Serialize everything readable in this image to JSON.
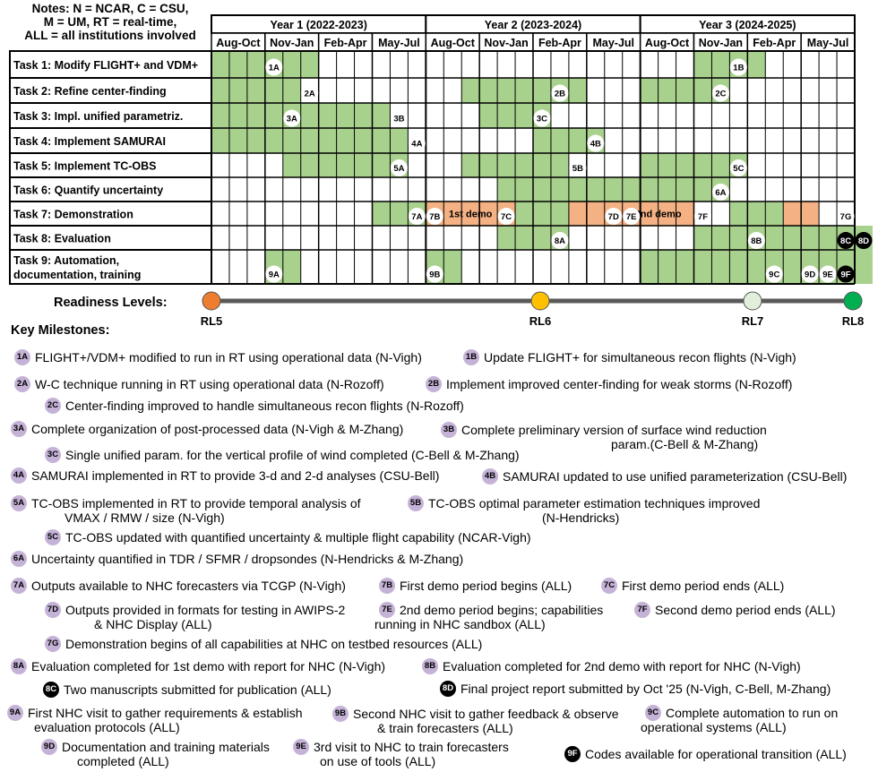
{
  "notes": {
    "line1": "Notes: N = NCAR, C = CSU,",
    "line2": "M = UM, RT = real-time,",
    "line3": "ALL = all institutions involved"
  },
  "years": [
    "Year 1 (2022-2023)",
    "Year 2 (2023-2024)",
    "Year 3 (2024-2025)"
  ],
  "quarters": [
    "Aug-Oct",
    "Nov-Jan",
    "Feb-Apr",
    "May-Jul",
    "Aug-Oct",
    "Nov-Jan",
    "Feb-Apr",
    "May-Jul",
    "Aug-Oct",
    "Nov-Jan",
    "Feb-Apr",
    "May-Jul"
  ],
  "colors": {
    "green": "#a9d18e",
    "orange": "#f4b183",
    "milestone_badge": "#c5b3d7",
    "rl5": "#ed7d31",
    "rl6": "#ffc000",
    "rl7": "#e2efda",
    "rl8": "#00b050"
  },
  "tasks": [
    {
      "label": "Task 1: Modify FLIGHT+ and VDM+",
      "spans": [
        [
          0,
          5,
          "green"
        ],
        [
          27,
          30,
          "green"
        ]
      ],
      "markers": [
        [
          3,
          "1A"
        ],
        [
          29,
          "1B"
        ]
      ]
    },
    {
      "label": "Task 2: Refine center-finding",
      "spans": [
        [
          0,
          4,
          "green"
        ],
        [
          14,
          20,
          "green"
        ],
        [
          24,
          28,
          "green"
        ]
      ],
      "markers": [
        [
          5,
          "2A"
        ],
        [
          19,
          "2B"
        ],
        [
          28,
          "2C"
        ]
      ]
    },
    {
      "label": "Task 3: Impl. unified parametriz.",
      "spans": [
        [
          0,
          9,
          "green"
        ],
        [
          15,
          18,
          "green"
        ]
      ],
      "markers": [
        [
          4,
          "3A"
        ],
        [
          10,
          "3B"
        ],
        [
          18,
          "3C"
        ]
      ]
    },
    {
      "label": "Task 4: Implement SAMURAI",
      "spans": [
        [
          0,
          10,
          "green"
        ],
        [
          18,
          21,
          "green"
        ]
      ],
      "markers": [
        [
          11,
          "4A"
        ],
        [
          21,
          "4B"
        ]
      ]
    },
    {
      "label": "Task 5: Implement TC-OBS",
      "spans": [
        [
          4,
          10,
          "green"
        ],
        [
          14,
          19,
          "green"
        ],
        [
          24,
          29,
          "green"
        ]
      ],
      "markers": [
        [
          10,
          "5A"
        ],
        [
          20,
          "5B"
        ],
        [
          29,
          "5C"
        ]
      ]
    },
    {
      "label": "Task 6: Quantify uncertainty",
      "spans": [
        [
          16,
          28,
          "green"
        ]
      ],
      "markers": [
        [
          28,
          "6A"
        ]
      ]
    },
    {
      "label": "Task 7: Demonstration",
      "spans": [
        [
          9,
          11,
          "green"
        ],
        [
          12,
          13,
          "orange"
        ],
        [
          13,
          16,
          "orange"
        ],
        [
          17,
          19,
          "green"
        ],
        [
          20,
          26,
          "orange"
        ],
        [
          29,
          31,
          "green"
        ],
        [
          32,
          33,
          "orange"
        ]
      ],
      "markers": [
        [
          11,
          "7A"
        ],
        [
          12,
          "7B"
        ],
        [
          16,
          "7C"
        ],
        [
          22,
          "7D"
        ],
        [
          23,
          "7E"
        ],
        [
          27,
          "7F"
        ],
        [
          35,
          "7G"
        ]
      ],
      "demos": [
        [
          13,
          15,
          "1st demo"
        ],
        [
          23,
          26,
          "2nd demo"
        ]
      ]
    },
    {
      "label": "Task 8: Evaluation",
      "spans": [
        [
          16,
          19,
          "green"
        ],
        [
          27,
          36,
          "green"
        ]
      ],
      "markers": [
        [
          19,
          "8A"
        ],
        [
          30,
          "8B"
        ],
        [
          35,
          "8C"
        ],
        [
          36,
          "8D"
        ]
      ]
    },
    {
      "label": "Task 9: Automation, documentation, training",
      "spans": [
        [
          3,
          4,
          "green"
        ],
        [
          12,
          13,
          "green"
        ],
        [
          24,
          36,
          "green"
        ]
      ],
      "markers": [
        [
          3,
          "9A"
        ],
        [
          12,
          "9B"
        ],
        [
          31,
          "9C"
        ],
        [
          33,
          "9D"
        ],
        [
          34,
          "9E"
        ],
        [
          35,
          "9F"
        ]
      ]
    }
  ],
  "readiness": {
    "label": "Readiness Levels:",
    "levels": [
      "RL5",
      "RL6",
      "RL7",
      "RL8"
    ]
  },
  "key_milestones_title": "Key Milestones:",
  "milestones": [
    {
      "id": "1A",
      "text": "FLIGHT+/VDM+ modified to run in RT using operational data (N-Vigh)"
    },
    {
      "id": "1B",
      "text": "Update FLIGHT+ for simultaneous recon flights (N-Vigh)"
    },
    {
      "id": "2A",
      "text": "W-C technique running in RT using operational data (N-Rozoff)"
    },
    {
      "id": "2B",
      "text": "Implement improved center-finding for weak storms (N-Rozoff)"
    },
    {
      "id": "2C",
      "text": "Center-finding improved to handle simultaneous recon flights (N-Rozoff)"
    },
    {
      "id": "3A",
      "text": "Complete organization of post-processed data (N-Vigh & M-Zhang)"
    },
    {
      "id": "3B",
      "text": "Complete preliminary version of surface wind reduction",
      "text2": "param.(C-Bell & M-Zhang)"
    },
    {
      "id": "3C",
      "text": "Single unified param. for the vertical profile of wind completed (C-Bell & M-Zhang)"
    },
    {
      "id": "4A",
      "text": "SAMURAI implemented in RT to provide 3-d and 2-d analyses (CSU-Bell)"
    },
    {
      "id": "4B",
      "text": "SAMURAI updated to use unified parameterization (CSU-Bell)"
    },
    {
      "id": "5A",
      "text": "TC-OBS implemented in RT to provide temporal analysis of",
      "text2": "VMAX / RMW / size (N-Vigh)"
    },
    {
      "id": "5B",
      "text": "TC-OBS optimal parameter estimation techniques improved",
      "text2": "(N-Hendricks)"
    },
    {
      "id": "5C",
      "text": "TC-OBS updated with quantified uncertainty & multiple flight capability (NCAR-Vigh)"
    },
    {
      "id": "6A",
      "text": "Uncertainty quantified in TDR / SFMR / dropsondes (N-Hendricks & M-Zhang)"
    },
    {
      "id": "7A",
      "text": "Outputs available to NHC forecasters via TCGP (N-Vigh)"
    },
    {
      "id": "7B",
      "text": "First demo period begins (ALL)"
    },
    {
      "id": "7C",
      "text": "First demo period ends (ALL)"
    },
    {
      "id": "7D",
      "text": "Outputs provided in formats for testing in AWIPS-2",
      "text2": "& NHC Display (ALL)"
    },
    {
      "id": "7E",
      "text": "2nd demo period begins; capabilities",
      "text2": "running in NHC sandbox (ALL)"
    },
    {
      "id": "7F",
      "text": "Second demo period ends (ALL)"
    },
    {
      "id": "7G",
      "text": "Demonstration begins of all capabilities at NHC on testbed resources (ALL)"
    },
    {
      "id": "8A",
      "text": "Evaluation completed for 1st demo with report for NHC (N-Vigh)"
    },
    {
      "id": "8B",
      "text": "Evaluation completed for 2nd demo with report for NHC (N-Vigh)"
    },
    {
      "id": "8C",
      "text": "Two manuscripts submitted for publication (ALL)"
    },
    {
      "id": "8D",
      "text": "Final project report submitted by Oct '25 (N-Vigh, C-Bell, M-Zhang)"
    },
    {
      "id": "9A",
      "text": "First NHC visit to gather requirements & establish",
      "text2": "evaluation protocols (ALL)"
    },
    {
      "id": "9B",
      "text": "Second NHC visit to gather feedback & observe",
      "text2": "& train forecasters (ALL)"
    },
    {
      "id": "9C",
      "text": "Complete automation to run on",
      "text2": "operational systems (ALL)"
    },
    {
      "id": "9D",
      "text": "Documentation and training materials",
      "text2": "completed (ALL)"
    },
    {
      "id": "9E",
      "text": "3rd visit to NHC to train forecasters",
      "text2": "on use of tools (ALL)"
    },
    {
      "id": "9F",
      "text": "Codes available for operational transition (ALL)"
    }
  ]
}
